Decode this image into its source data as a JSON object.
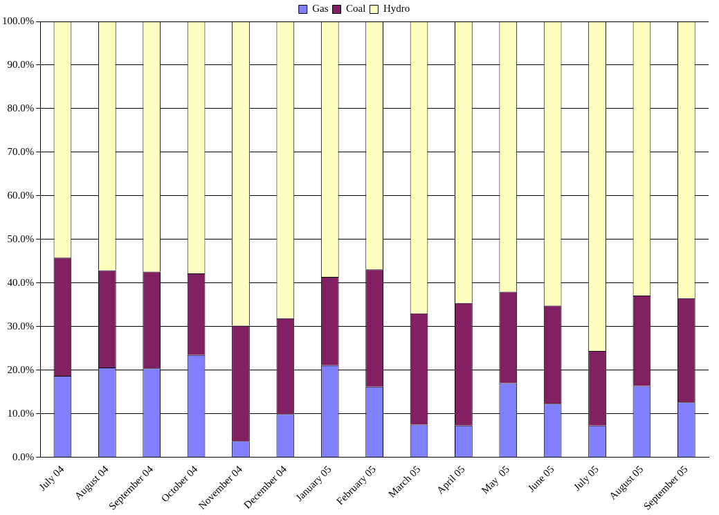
{
  "chart_data": {
    "type": "bar",
    "stacked": true,
    "legend": "top",
    "grid": "y",
    "categories": [
      "July 04",
      "August 04",
      "September 04",
      "October 04",
      "November 04",
      "December 04",
      "January 05",
      "February 05",
      "March 05",
      "April 05",
      "May  05",
      "June 05",
      "July 05",
      "August 05",
      "September 05"
    ],
    "series": [
      {
        "name": "Gas",
        "color": "#8080ff",
        "values": [
          18.7,
          20.6,
          20.4,
          23.5,
          3.7,
          9.9,
          21.1,
          16.2,
          7.5,
          7.3,
          17.0,
          12.3,
          7.3,
          16.4,
          12.6
        ]
      },
      {
        "name": "Coal",
        "color": "#802060",
        "values": [
          27.1,
          22.3,
          22.2,
          18.7,
          26.5,
          22.0,
          20.3,
          26.9,
          25.5,
          28.1,
          21.0,
          22.5,
          17.1,
          20.7,
          23.9
        ]
      },
      {
        "name": "Hydro",
        "color": "#ffffc0",
        "values": [
          54.2,
          57.1,
          57.4,
          57.8,
          69.8,
          68.1,
          58.6,
          56.9,
          67.0,
          64.6,
          62.0,
          65.2,
          75.6,
          62.9,
          63.5
        ]
      }
    ],
    "ylim": [
      0,
      100
    ],
    "yticks": [
      {
        "value": 0,
        "label": "0.0%"
      },
      {
        "value": 10,
        "label": "10.0%"
      },
      {
        "value": 20,
        "label": "20.0%"
      },
      {
        "value": 30,
        "label": "30.0%"
      },
      {
        "value": 40,
        "label": "40.0%"
      },
      {
        "value": 50,
        "label": "50.0%"
      },
      {
        "value": 60,
        "label": "60.0%"
      },
      {
        "value": 70,
        "label": "70.0%"
      },
      {
        "value": 80,
        "label": "80.0%"
      },
      {
        "value": 90,
        "label": "90.0%"
      },
      {
        "value": 100,
        "label": "100.0%"
      }
    ]
  }
}
